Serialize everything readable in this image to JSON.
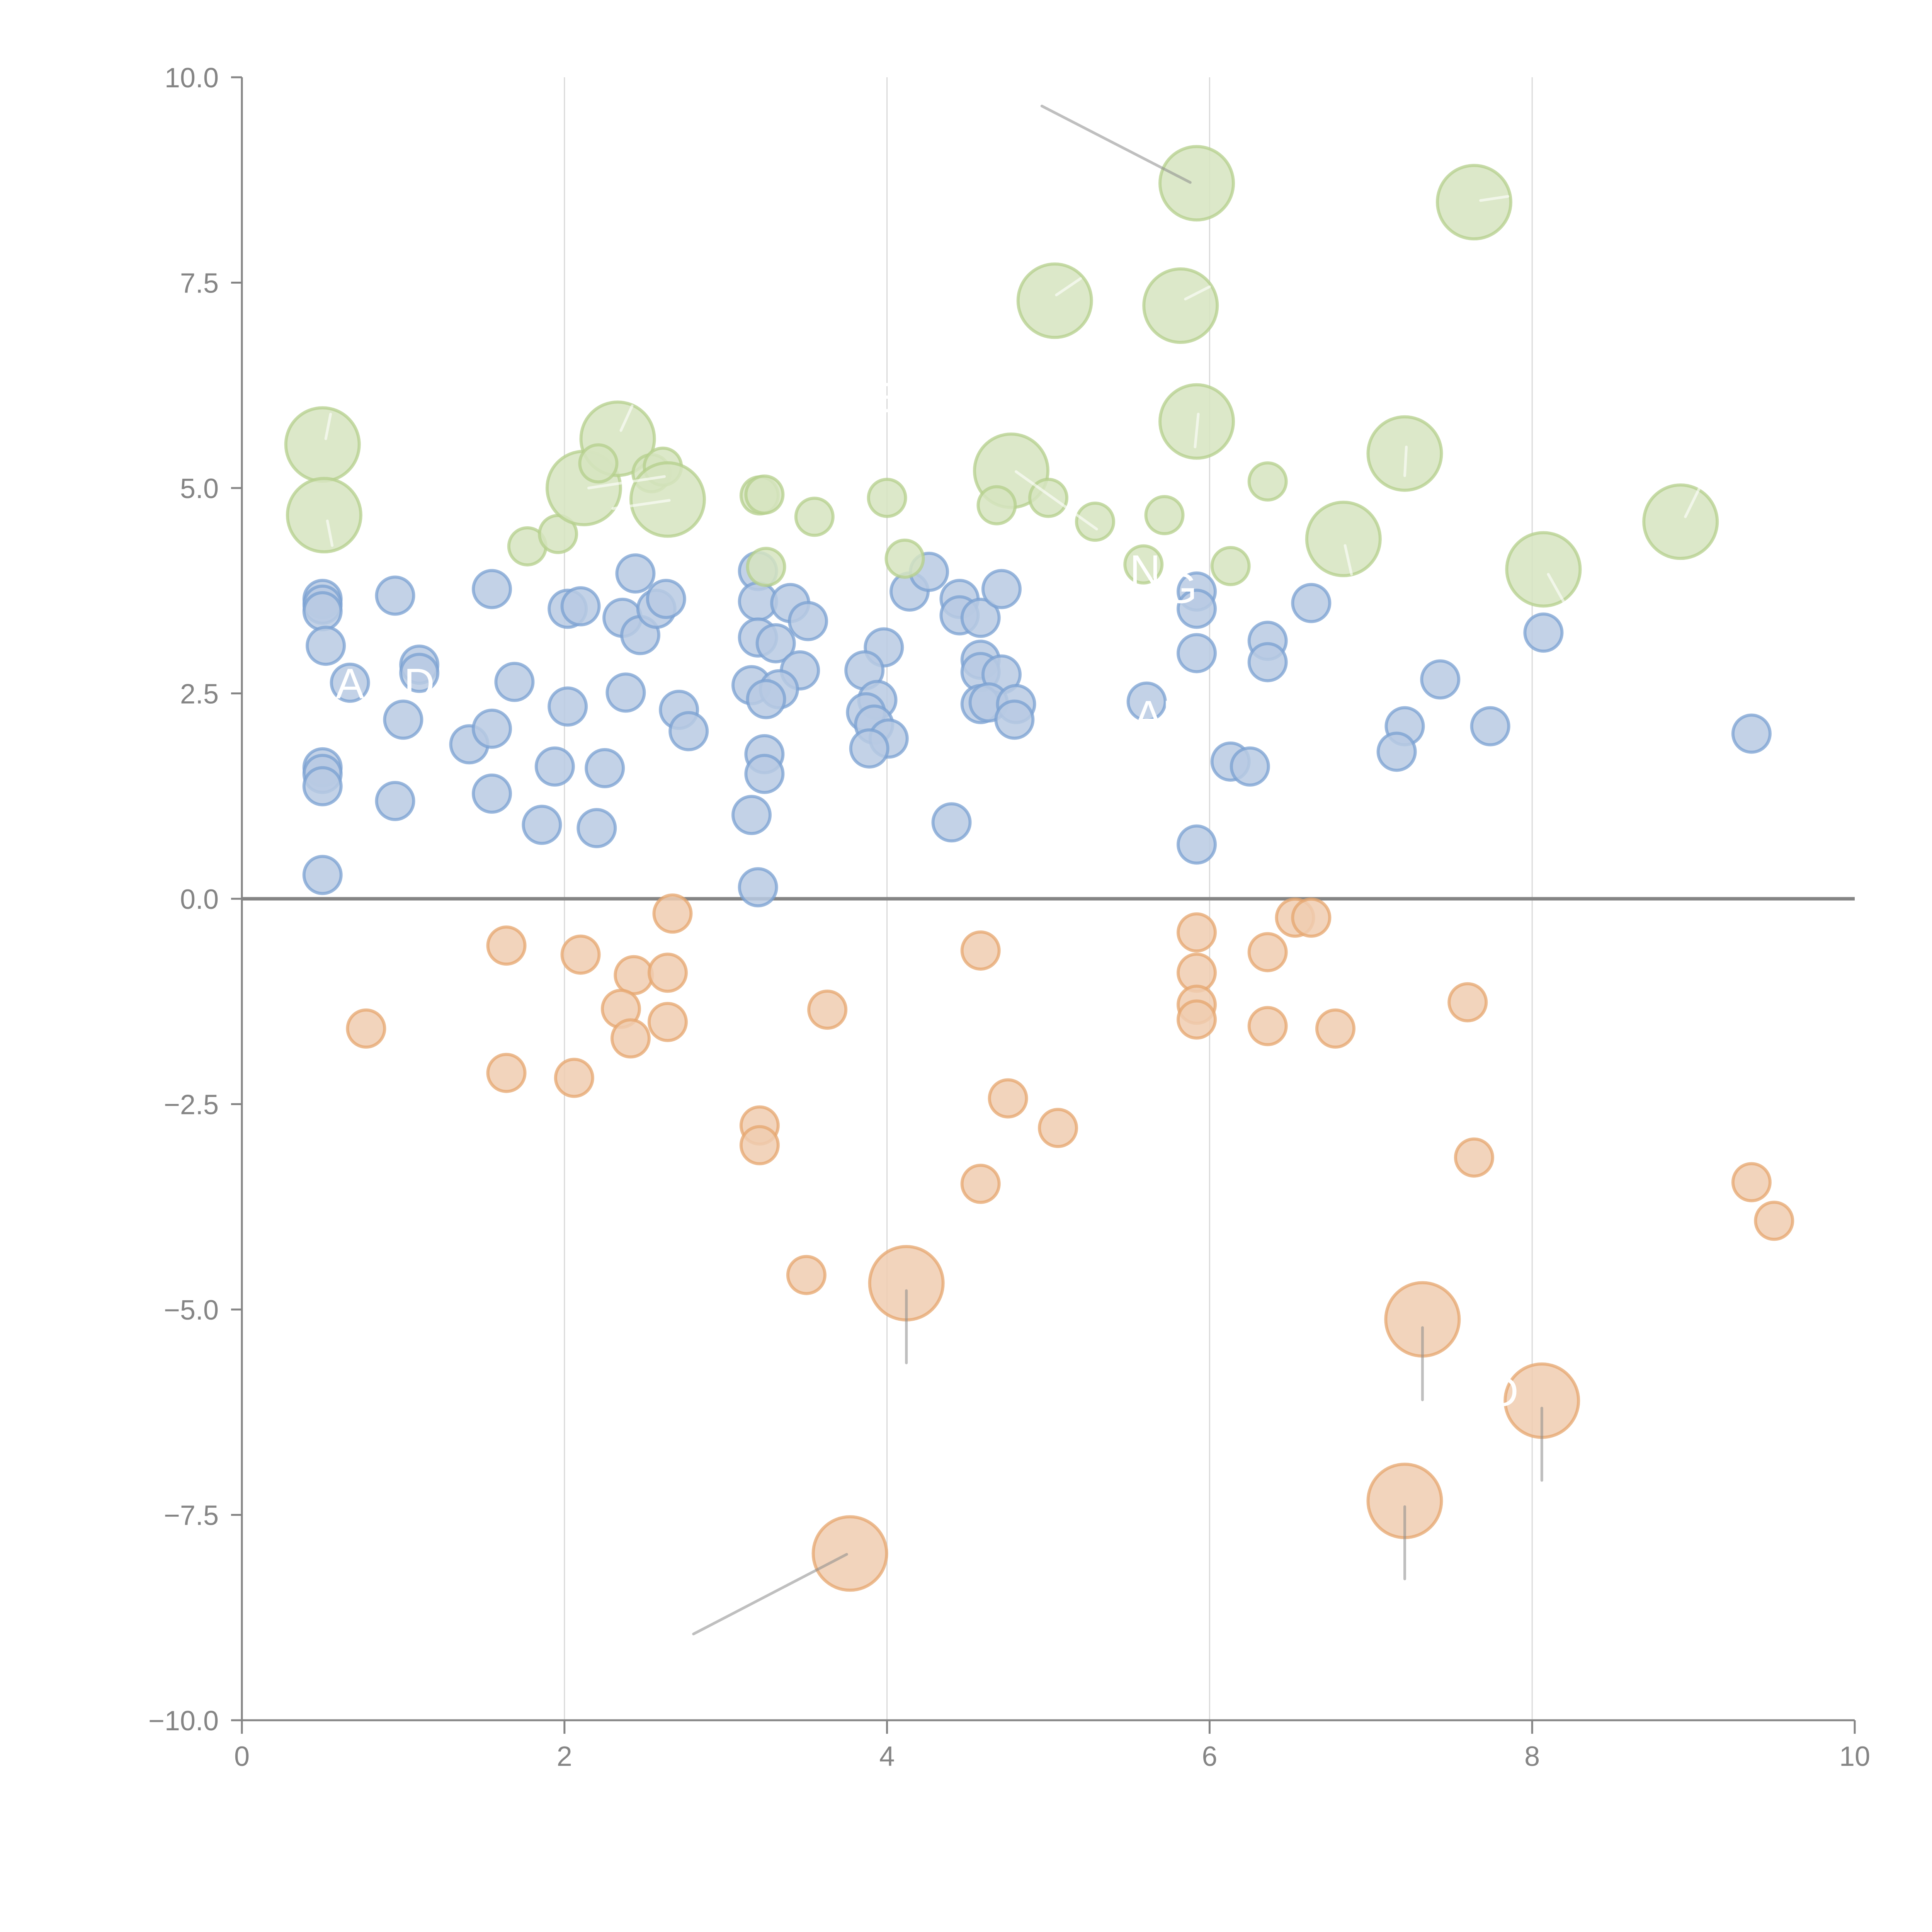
{
  "chart_data": {
    "type": "scatter",
    "subtype": "bubble",
    "title": "",
    "xlabel": "",
    "ylabel": "",
    "xlim": [
      0,
      10
    ],
    "ylim": [
      -10,
      10
    ],
    "x_ticks": [
      "0",
      "2",
      "4",
      "6",
      "8",
      "10"
    ],
    "y_ticks": [
      "10.0",
      "7.5",
      "5.0",
      "2.5",
      "0.0",
      "−2.5",
      "−5.0",
      "−7.5",
      "−10.0"
    ],
    "x_tick_values": [
      0,
      2,
      4,
      6,
      8,
      10
    ],
    "y_tick_values": [
      10,
      7.5,
      5,
      2.5,
      0,
      -2.5,
      -5,
      -7.5,
      -10
    ],
    "grid": "vertical",
    "zero_line": true,
    "legend": "none",
    "size_scale": {
      "small": 1,
      "large": 2
    },
    "series": [
      {
        "name": "blue",
        "color": "#7aa0d2",
        "fill": "#b8cae3",
        "points": [
          [
            0.5,
            3.65,
            1
          ],
          [
            0.5,
            3.58,
            1
          ],
          [
            0.5,
            3.5,
            1
          ],
          [
            0.52,
            3.08,
            1
          ],
          [
            0.67,
            2.63,
            1
          ],
          [
            0.5,
            1.6,
            1
          ],
          [
            0.5,
            1.52,
            1
          ],
          [
            0.5,
            1.37,
            1
          ],
          [
            0.5,
            0.29,
            1
          ],
          [
            0.95,
            3.69,
            1
          ],
          [
            1.1,
            2.85,
            1
          ],
          [
            1.1,
            2.75,
            1
          ],
          [
            1.0,
            2.18,
            1
          ],
          [
            0.95,
            1.19,
            1
          ],
          [
            1.41,
            1.88,
            1
          ],
          [
            1.55,
            3.77,
            1
          ],
          [
            1.55,
            2.07,
            1
          ],
          [
            1.55,
            1.28,
            1
          ],
          [
            1.69,
            2.64,
            1
          ],
          [
            1.86,
            0.9,
            1
          ],
          [
            1.94,
            1.61,
            1
          ],
          [
            2.02,
            3.53,
            1
          ],
          [
            2.1,
            3.56,
            1
          ],
          [
            2.02,
            2.34,
            1
          ],
          [
            2.25,
            1.59,
            1
          ],
          [
            2.2,
            0.86,
            1
          ],
          [
            2.36,
            3.42,
            1
          ],
          [
            2.44,
            3.96,
            1
          ],
          [
            2.47,
            3.21,
            1
          ],
          [
            2.38,
            2.51,
            1
          ],
          [
            2.57,
            3.53,
            1
          ],
          [
            2.63,
            3.65,
            1
          ],
          [
            2.71,
            2.3,
            1
          ],
          [
            2.77,
            2.04,
            1
          ],
          [
            3.2,
            3.99,
            1
          ],
          [
            3.2,
            3.62,
            1
          ],
          [
            3.2,
            3.18,
            1
          ],
          [
            3.31,
            3.11,
            1
          ],
          [
            3.4,
            3.6,
            1
          ],
          [
            3.51,
            3.38,
            1
          ],
          [
            3.46,
            2.78,
            1
          ],
          [
            3.16,
            2.6,
            1
          ],
          [
            3.33,
            2.55,
            1
          ],
          [
            3.25,
            2.43,
            1
          ],
          [
            3.24,
            1.76,
            1
          ],
          [
            3.24,
            1.52,
            1
          ],
          [
            3.16,
            1.02,
            1
          ],
          [
            3.2,
            0.14,
            1
          ],
          [
            3.98,
            3.06,
            1
          ],
          [
            3.86,
            2.78,
            1
          ],
          [
            3.94,
            2.42,
            1
          ],
          [
            3.87,
            2.27,
            1
          ],
          [
            3.92,
            2.12,
            1
          ],
          [
            4.01,
            1.95,
            1
          ],
          [
            3.89,
            1.83,
            1
          ],
          [
            4.14,
            3.74,
            1
          ],
          [
            4.26,
            3.98,
            1
          ],
          [
            4.45,
            3.65,
            1
          ],
          [
            4.45,
            3.45,
            1
          ],
          [
            4.58,
            3.42,
            1
          ],
          [
            4.71,
            3.77,
            1
          ],
          [
            4.58,
            2.91,
            1
          ],
          [
            4.58,
            2.76,
            1
          ],
          [
            4.71,
            2.73,
            1
          ],
          [
            4.58,
            2.37,
            1
          ],
          [
            4.63,
            2.39,
            1
          ],
          [
            4.8,
            2.37,
            1
          ],
          [
            4.79,
            2.18,
            1
          ],
          [
            4.4,
            0.93,
            1
          ],
          [
            5.61,
            2.4,
            1
          ],
          [
            5.92,
            3.74,
            1
          ],
          [
            5.92,
            3.53,
            1
          ],
          [
            5.92,
            2.99,
            1
          ],
          [
            6.13,
            1.67,
            1
          ],
          [
            6.25,
            1.61,
            1
          ],
          [
            5.92,
            0.66,
            1
          ],
          [
            6.36,
            3.14,
            1
          ],
          [
            6.36,
            2.88,
            1
          ],
          [
            6.63,
            3.6,
            1
          ],
          [
            7.21,
            2.1,
            1
          ],
          [
            7.16,
            1.79,
            1
          ],
          [
            7.43,
            2.67,
            1
          ],
          [
            7.74,
            2.1,
            1
          ],
          [
            8.07,
            3.24,
            1
          ],
          [
            9.36,
            2.01,
            1
          ]
        ]
      },
      {
        "name": "orange",
        "color": "#e6a56e",
        "fill": "#f0cdb0",
        "points": [
          [
            0.77,
            -1.58,
            1
          ],
          [
            1.64,
            -0.57,
            1
          ],
          [
            1.64,
            -2.12,
            1
          ],
          [
            2.1,
            -0.68,
            1
          ],
          [
            2.06,
            -2.18,
            1
          ],
          [
            2.43,
            -0.93,
            1
          ],
          [
            2.35,
            -1.34,
            1
          ],
          [
            2.41,
            -1.7,
            1
          ],
          [
            2.64,
            -0.9,
            1
          ],
          [
            2.64,
            -1.5,
            1
          ],
          [
            2.67,
            -0.18,
            1
          ],
          [
            3.21,
            -2.76,
            1
          ],
          [
            3.21,
            -3.0,
            1
          ],
          [
            3.63,
            -1.35,
            1
          ],
          [
            3.5,
            -4.58,
            1
          ],
          [
            4.12,
            -4.68,
            2
          ],
          [
            3.77,
            -7.97,
            2
          ],
          [
            4.58,
            -0.63,
            1
          ],
          [
            4.75,
            -2.43,
            1
          ],
          [
            4.58,
            -3.47,
            1
          ],
          [
            5.06,
            -2.79,
            1
          ],
          [
            5.92,
            -0.41,
            1
          ],
          [
            5.92,
            -0.9,
            1
          ],
          [
            5.92,
            -1.29,
            1
          ],
          [
            5.92,
            -1.47,
            1
          ],
          [
            6.36,
            -0.65,
            1
          ],
          [
            6.36,
            -1.55,
            1
          ],
          [
            6.53,
            -0.23,
            1
          ],
          [
            6.63,
            -0.23,
            1
          ],
          [
            6.78,
            -1.58,
            1
          ],
          [
            7.32,
            -5.12,
            2
          ],
          [
            7.21,
            -7.33,
            2
          ],
          [
            7.6,
            -1.26,
            1
          ],
          [
            7.64,
            -3.15,
            1
          ],
          [
            8.06,
            -6.11,
            2
          ],
          [
            9.36,
            -3.45,
            1
          ],
          [
            9.5,
            -3.92,
            1
          ]
        ]
      },
      {
        "name": "green",
        "color": "#b4cf8b",
        "fill": "#d6e4c0",
        "points": [
          [
            0.5,
            5.53,
            2
          ],
          [
            0.51,
            4.67,
            2
          ],
          [
            1.77,
            4.29,
            1
          ],
          [
            1.96,
            4.44,
            1
          ],
          [
            2.12,
            5.0,
            2
          ],
          [
            2.33,
            5.6,
            2
          ],
          [
            2.21,
            5.3,
            1
          ],
          [
            2.54,
            5.18,
            1
          ],
          [
            2.61,
            5.26,
            1
          ],
          [
            2.64,
            4.86,
            2
          ],
          [
            3.21,
            4.91,
            1
          ],
          [
            3.24,
            4.92,
            1
          ],
          [
            3.25,
            4.04,
            1
          ],
          [
            3.55,
            4.65,
            1
          ],
          [
            4.0,
            4.88,
            1
          ],
          [
            4.11,
            4.14,
            1
          ],
          [
            4.77,
            5.21,
            2
          ],
          [
            4.68,
            4.79,
            1
          ],
          [
            5.0,
            4.88,
            1
          ],
          [
            5.29,
            4.59,
            1
          ],
          [
            5.04,
            7.28,
            2
          ],
          [
            5.82,
            7.22,
            2
          ],
          [
            5.92,
            8.71,
            2
          ],
          [
            5.92,
            5.81,
            2
          ],
          [
            5.72,
            4.67,
            1
          ],
          [
            5.59,
            4.07,
            1
          ],
          [
            6.36,
            5.08,
            1
          ],
          [
            6.13,
            4.05,
            1
          ],
          [
            6.83,
            4.38,
            2
          ],
          [
            7.21,
            5.42,
            2
          ],
          [
            7.64,
            8.48,
            2
          ],
          [
            8.07,
            4.01,
            2
          ],
          [
            8.92,
            4.59,
            2
          ]
        ]
      }
    ],
    "annotation_lines": [
      {
        "from": [
          4.96,
          9.65
        ],
        "to": [
          5.88,
          8.72
        ]
      },
      {
        "from": [
          2.8,
          -8.95
        ],
        "to": [
          3.75,
          -7.98
        ]
      },
      {
        "from": [
          4.12,
          -4.77
        ],
        "to": [
          4.12,
          -5.65
        ]
      },
      {
        "from": [
          7.32,
          -5.22
        ],
        "to": [
          7.32,
          -6.1
        ]
      },
      {
        "from": [
          8.06,
          -6.2
        ],
        "to": [
          8.06,
          -7.08
        ]
      },
      {
        "from": [
          7.21,
          -7.4
        ],
        "to": [
          7.21,
          -8.28
        ]
      }
    ],
    "label_connectors": [
      {
        "from": [
          0.52,
          5.6
        ],
        "to": [
          0.55,
          5.9
        ]
      },
      {
        "from": [
          0.53,
          4.6
        ],
        "to": [
          0.56,
          4.3
        ]
      },
      {
        "from": [
          2.35,
          5.7
        ],
        "to": [
          2.42,
          6.0
        ]
      },
      {
        "from": [
          2.15,
          5.0
        ],
        "to": [
          2.62,
          5.14
        ]
      },
      {
        "from": [
          2.3,
          4.75
        ],
        "to": [
          2.65,
          4.85
        ]
      },
      {
        "from": [
          5.05,
          7.35
        ],
        "to": [
          5.2,
          7.55
        ]
      },
      {
        "from": [
          5.85,
          7.3
        ],
        "to": [
          6.0,
          7.45
        ]
      },
      {
        "from": [
          5.93,
          5.9
        ],
        "to": [
          5.91,
          5.5
        ]
      },
      {
        "from": [
          4.8,
          5.2
        ],
        "to": [
          5.3,
          4.5
        ]
      },
      {
        "from": [
          7.22,
          5.5
        ],
        "to": [
          7.21,
          5.15
        ]
      },
      {
        "from": [
          6.84,
          4.3
        ],
        "to": [
          6.88,
          3.95
        ]
      },
      {
        "from": [
          8.1,
          3.95
        ],
        "to": [
          8.2,
          3.6
        ]
      },
      {
        "from": [
          8.95,
          4.65
        ],
        "to": [
          9.05,
          5.05
        ]
      },
      {
        "from": [
          7.68,
          8.5
        ],
        "to": [
          7.85,
          8.55
        ]
      }
    ],
    "point_labels": [
      {
        "text": "A",
        "at": [
          0.67,
          2.62
        ]
      },
      {
        "text": "D",
        "at": [
          1.1,
          2.62
        ]
      },
      {
        "text": "N",
        "at": [
          5.6,
          4.0
        ]
      },
      {
        "text": "G",
        "at": [
          5.82,
          3.78
        ]
      },
      {
        "text": "AF",
        "at": [
          5.7,
          2.23
        ]
      },
      {
        "text": "E",
        "at": [
          4.0,
          6.1
        ]
      },
      {
        "text": "D",
        "at": [
          7.82,
          -6.0
        ]
      }
    ]
  }
}
